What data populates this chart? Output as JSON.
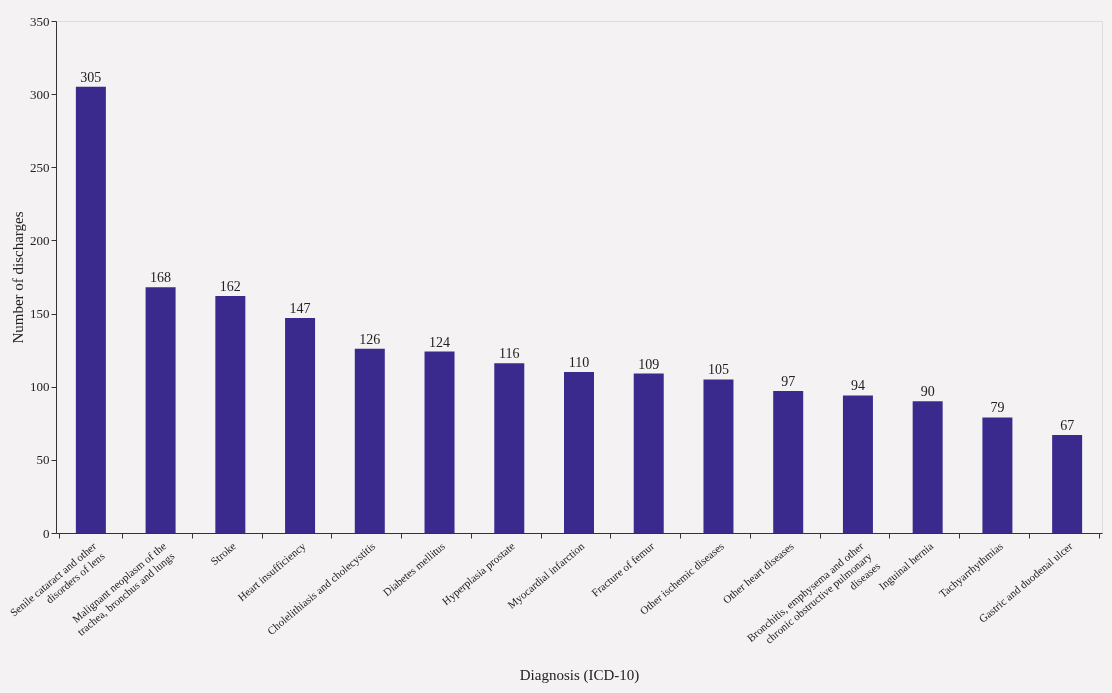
{
  "chart_data": {
    "type": "bar",
    "xlabel": "Diagnosis (ICD-10)",
    "ylabel": "Number of discharges",
    "categories": [
      "Senile cataract and other disorders of lens",
      "Malignant neoplasm of  the trachea, bronchus and lungs",
      "Stroke",
      "Heart insufficiency",
      "Cholelithiasis and cholecystitis",
      "Diabetes mellitus",
      "Hyperplasia prostate",
      "Myocardial infarction",
      "Fracture of femur",
      "Other ischemic diseases",
      "Other heart diseases",
      "Bronchitis, emphysema and other chronic obstructive pulmonary diseases",
      "Inguinal hernia",
      "Tachyarrhythmias",
      "Gastric and duodenal ulcer"
    ],
    "values": [
      305,
      168,
      162,
      147,
      126,
      124,
      116,
      110,
      109,
      105,
      97,
      94,
      90,
      79,
      67
    ],
    "color": "#3a2a8e",
    "ylim": [
      0,
      350
    ],
    "yticks": [
      0,
      50,
      100,
      150,
      200,
      250,
      300,
      350
    ],
    "grid": false,
    "data_labels": true
  }
}
